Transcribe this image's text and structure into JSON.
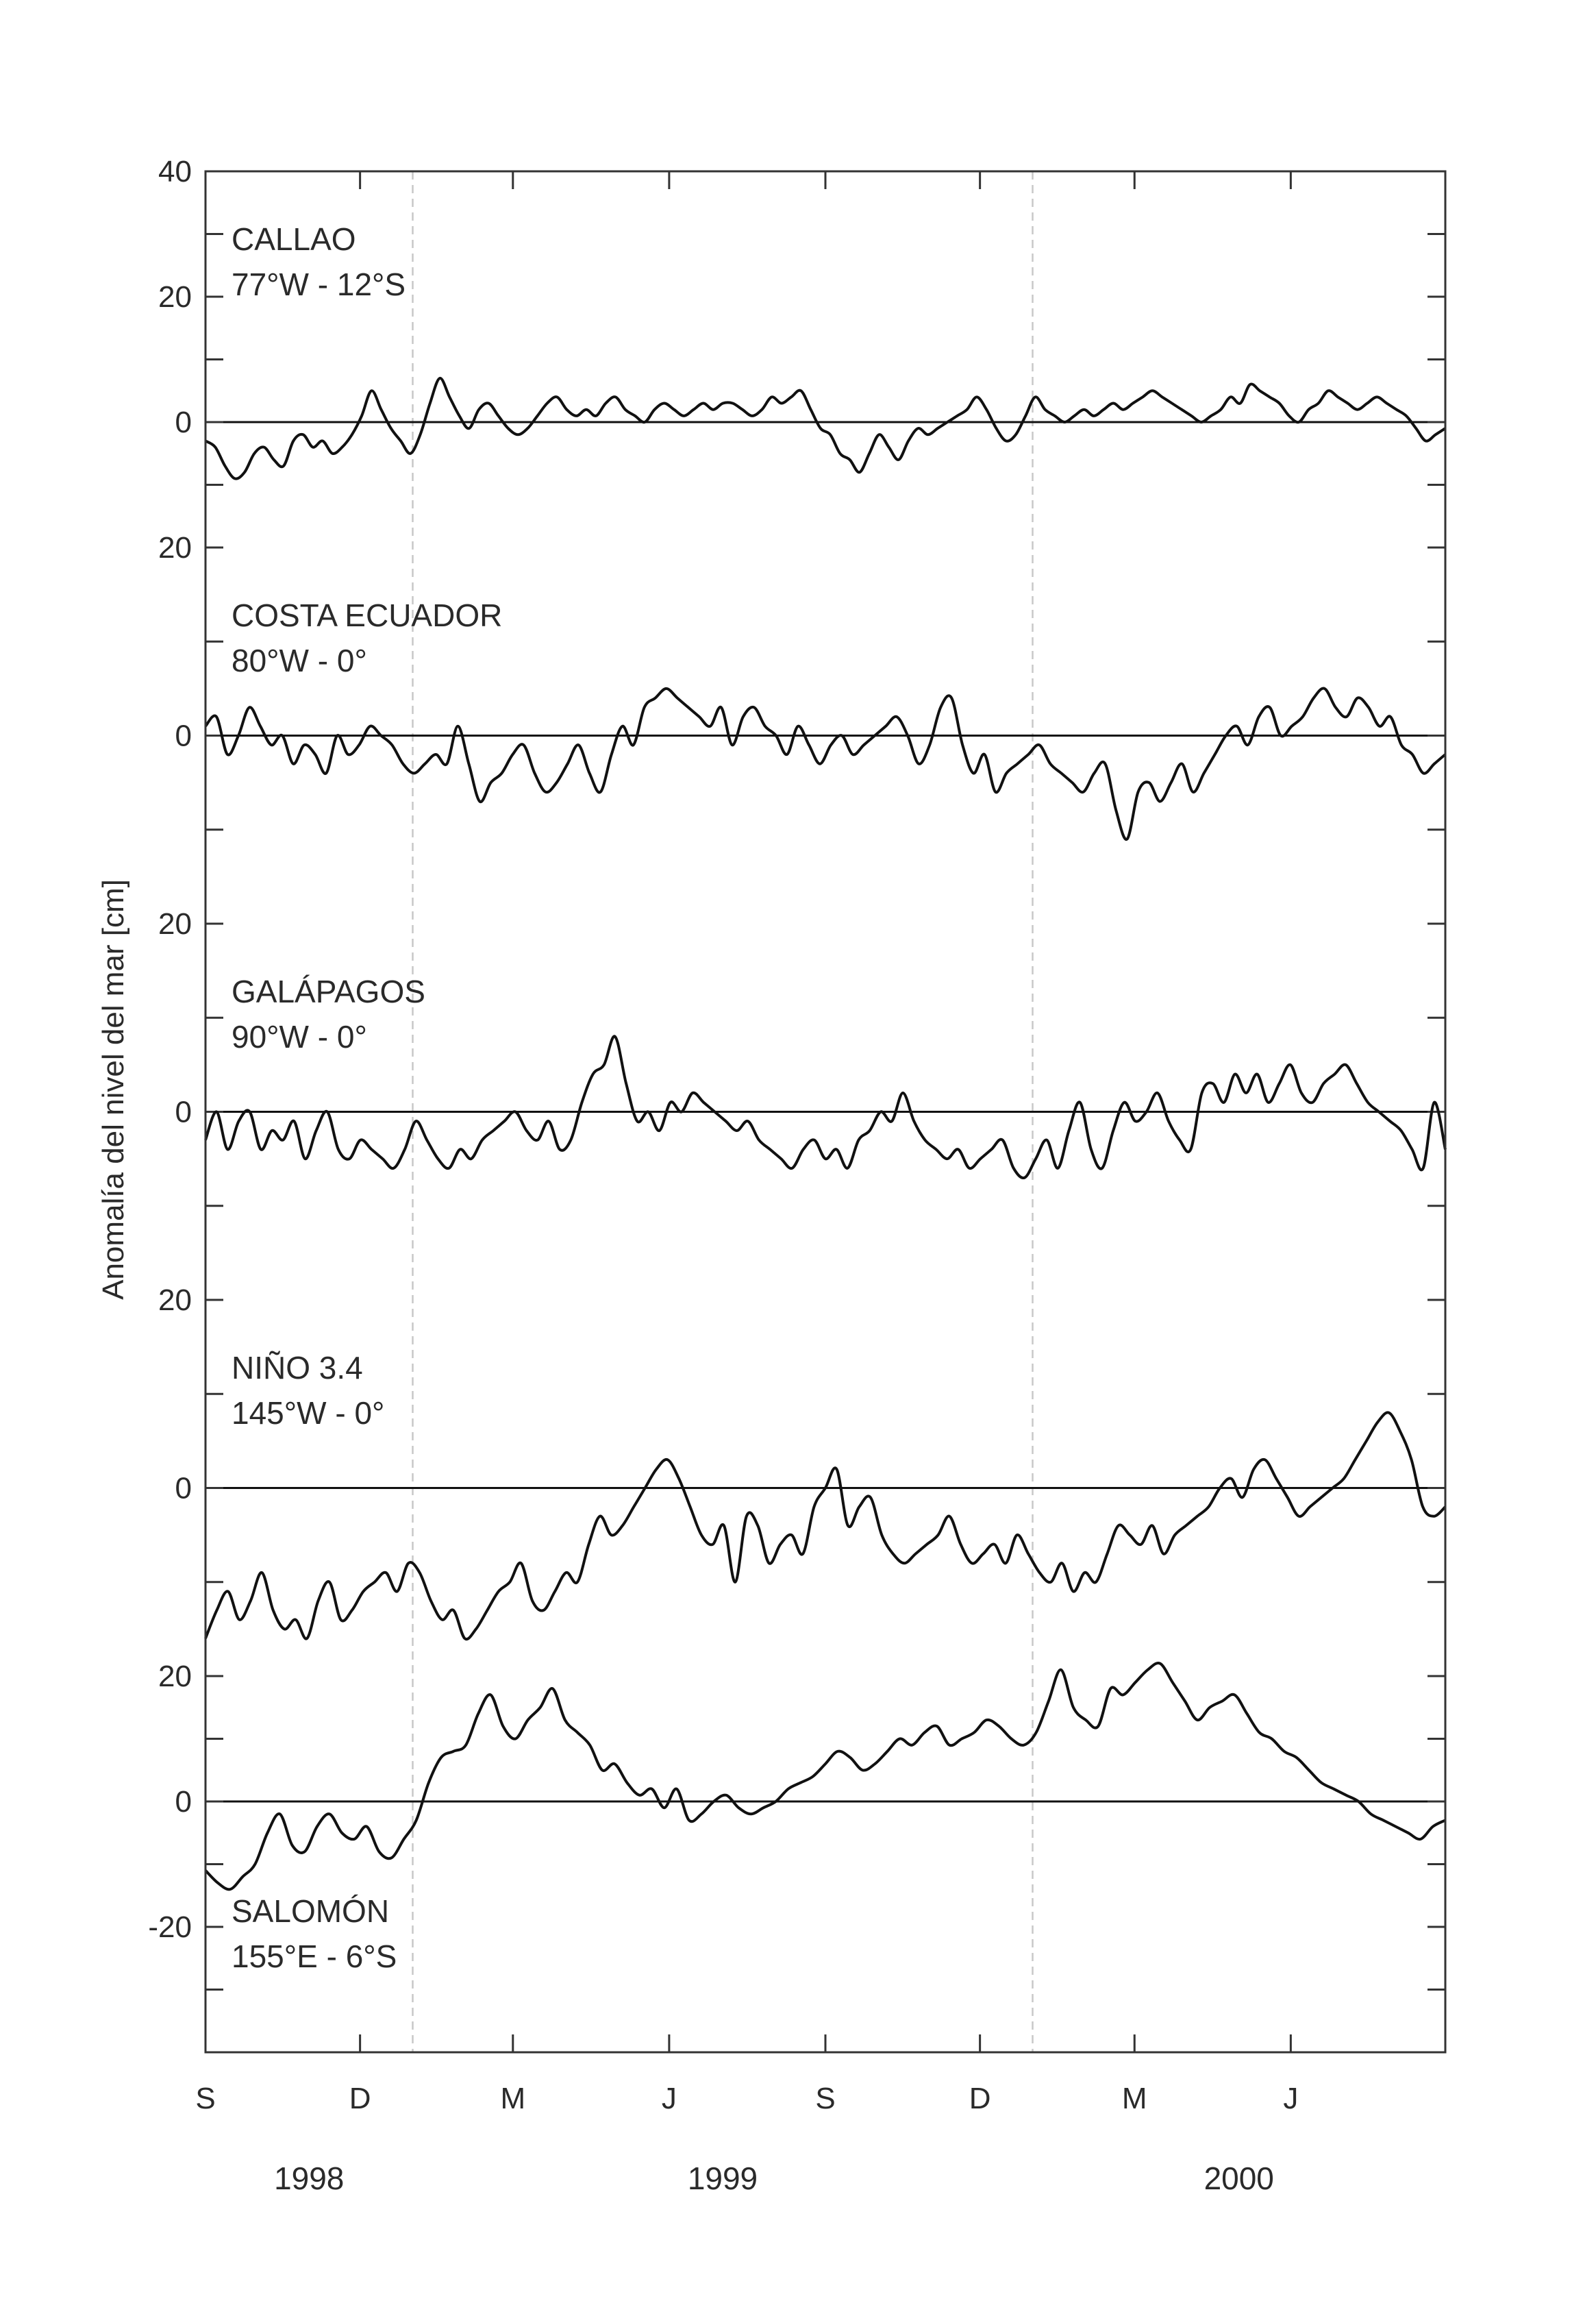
{
  "chart_data": {
    "type": "line",
    "ylabel": "Anomalía del nivel del mar [cm]",
    "grid": false,
    "x_range": [
      "1998-09-01",
      "2000-08-31"
    ],
    "month_ticks": [
      "S",
      "D",
      "M",
      "J",
      "S",
      "D",
      "M",
      "J"
    ],
    "year_labels": [
      "1998",
      "1999",
      "2000"
    ],
    "vertical_markers": [
      "1999-01-01",
      "2000-01-01"
    ],
    "panels": [
      {
        "name": "CALLAO",
        "location": "77°W - 12°S",
        "ylim": [
          -20,
          40
        ],
        "yticks": [
          "40",
          "20",
          "0",
          "-20"
        ],
        "values": [
          -3,
          -4,
          -7,
          -9,
          -8,
          -5,
          -4,
          -6,
          -7,
          -3,
          -2,
          -4,
          -3,
          -5,
          -4,
          -2,
          1,
          5,
          2,
          -1,
          -3,
          -5,
          -2,
          3,
          7,
          4,
          1,
          -1,
          2,
          3,
          1,
          -1,
          -2,
          -1,
          1,
          3,
          4,
          2,
          1,
          2,
          1,
          3,
          4,
          2,
          1,
          0,
          2,
          3,
          2,
          1,
          2,
          3,
          2,
          3,
          3,
          2,
          1,
          2,
          4,
          3,
          4,
          5,
          2,
          -1,
          -2,
          -5,
          -6,
          -8,
          -5,
          -2,
          -4,
          -6,
          -3,
          -1,
          -2,
          -1,
          0,
          1,
          2,
          4,
          2,
          -1,
          -3,
          -2,
          1,
          4,
          2,
          1,
          0,
          1,
          2,
          1,
          2,
          3,
          2,
          3,
          4,
          5,
          4,
          3,
          2,
          1,
          0,
          1,
          2,
          4,
          3,
          6,
          5,
          4,
          3,
          1,
          0,
          2,
          3,
          5,
          4,
          3,
          2,
          3,
          4,
          3,
          2,
          1,
          -1,
          -3,
          -2,
          -1
        ],
        "x_start": "1998-09-01",
        "x_end": "2000-08-31"
      },
      {
        "name": "COSTA ECUADOR",
        "location": "80°W - 0°",
        "ylim": [
          -20,
          20
        ],
        "yticks": [
          "20",
          "0",
          "-20"
        ],
        "values": [
          1,
          2,
          -2,
          0,
          3,
          1,
          -1,
          0,
          -3,
          -1,
          -2,
          -4,
          0,
          -2,
          -1,
          1,
          0,
          -1,
          -3,
          -4,
          -3,
          -2,
          -3,
          1,
          -3,
          -7,
          -5,
          -4,
          -2,
          -1,
          -4,
          -6,
          -5,
          -3,
          -1,
          -4,
          -6,
          -2,
          1,
          -1,
          3,
          4,
          5,
          4,
          3,
          2,
          1,
          3,
          -1,
          2,
          3,
          1,
          0,
          -2,
          1,
          -1,
          -3,
          -1,
          0,
          -2,
          -1,
          0,
          1,
          2,
          0,
          -3,
          -1,
          3,
          4,
          -1,
          -4,
          -2,
          -6,
          -4,
          -3,
          -2,
          -1,
          -3,
          -4,
          -5,
          -6,
          -4,
          -3,
          -8,
          -11,
          -6,
          -5,
          -7,
          -5,
          -3,
          -6,
          -4,
          -2,
          0,
          1,
          -1,
          2,
          3,
          0,
          1,
          2,
          4,
          5,
          3,
          2,
          4,
          3,
          1,
          2,
          -1,
          -2,
          -4,
          -3,
          -2
        ],
        "x_start": "1998-09-01",
        "x_end": "2000-08-31"
      },
      {
        "name": "GALÁPAGOS",
        "location": "90°W - 0°",
        "ylim": [
          -20,
          20
        ],
        "yticks": [
          "20",
          "0",
          "-20"
        ],
        "values": [
          -3,
          0,
          -4,
          -1,
          0,
          -4,
          -2,
          -3,
          -1,
          -5,
          -2,
          0,
          -4,
          -5,
          -3,
          -4,
          -5,
          -6,
          -4,
          -1,
          -3,
          -5,
          -6,
          -4,
          -5,
          -3,
          -2,
          -1,
          0,
          -2,
          -3,
          -1,
          -4,
          -3,
          1,
          4,
          5,
          8,
          3,
          -1,
          0,
          -2,
          1,
          0,
          2,
          1,
          0,
          -1,
          -2,
          -1,
          -3,
          -4,
          -5,
          -6,
          -4,
          -3,
          -5,
          -4,
          -6,
          -3,
          -2,
          0,
          -1,
          2,
          -1,
          -3,
          -4,
          -5,
          -4,
          -6,
          -5,
          -4,
          -3,
          -6,
          -7,
          -5,
          -3,
          -6,
          -2,
          1,
          -4,
          -6,
          -2,
          1,
          -1,
          0,
          2,
          -1,
          -3,
          -4,
          2,
          3,
          1,
          4,
          2,
          4,
          1,
          3,
          5,
          2,
          1,
          3,
          4,
          5,
          3,
          1,
          0,
          -1,
          -2,
          -4,
          -6,
          1,
          -4
        ],
        "x_start": "1998-09-01",
        "x_end": "2000-08-31"
      },
      {
        "name": "NIÑO 3.4",
        "location": "145°W - 0°",
        "ylim": [
          -20,
          20
        ],
        "yticks": [
          "20",
          "0",
          "-20"
        ],
        "values": [
          -16,
          -13,
          -11,
          -14,
          -12,
          -9,
          -13,
          -15,
          -14,
          -16,
          -12,
          -10,
          -14,
          -13,
          -11,
          -10,
          -9,
          -11,
          -8,
          -9,
          -12,
          -14,
          -13,
          -16,
          -15,
          -13,
          -11,
          -10,
          -8,
          -12,
          -13,
          -11,
          -9,
          -10,
          -6,
          -3,
          -5,
          -4,
          -2,
          0,
          2,
          3,
          1,
          -2,
          -5,
          -6,
          -4,
          -10,
          -3,
          -4,
          -8,
          -6,
          -5,
          -7,
          -2,
          0,
          2,
          -4,
          -2,
          -1,
          -5,
          -7,
          -8,
          -7,
          -6,
          -5,
          -3,
          -6,
          -8,
          -7,
          -6,
          -8,
          -5,
          -7,
          -9,
          -10,
          -8,
          -11,
          -9,
          -10,
          -7,
          -4,
          -5,
          -6,
          -4,
          -7,
          -5,
          -4,
          -3,
          -2,
          0,
          1,
          -1,
          2,
          3,
          1,
          -1,
          -3,
          -2,
          -1,
          0,
          1,
          3,
          5,
          7,
          8,
          6,
          3,
          -2,
          -3,
          -2
        ],
        "x_start": "1998-09-01",
        "x_end": "2000-08-31"
      },
      {
        "name": "SALOMÓN",
        "location": "155°E - 6°S",
        "ylim": [
          -40,
          20
        ],
        "yticks": [
          "20",
          "0",
          "-20",
          "-40"
        ],
        "values": [
          -11,
          -13,
          -14,
          -12,
          -10,
          -5,
          -2,
          -7,
          -8,
          -4,
          -2,
          -5,
          -6,
          -4,
          -8,
          -9,
          -6,
          -3,
          3,
          7,
          8,
          9,
          14,
          17,
          12,
          10,
          13,
          15,
          18,
          13,
          11,
          9,
          5,
          6,
          3,
          1,
          2,
          -1,
          2,
          -3,
          -2,
          0,
          1,
          -1,
          -2,
          -1,
          0,
          2,
          3,
          4,
          6,
          8,
          7,
          5,
          6,
          8,
          10,
          9,
          11,
          12,
          9,
          10,
          11,
          13,
          12,
          10,
          9,
          11,
          16,
          21,
          15,
          13,
          12,
          18,
          17,
          19,
          21,
          22,
          19,
          16,
          13,
          15,
          16,
          17,
          14,
          11,
          10,
          8,
          7,
          5,
          3,
          2,
          1,
          0,
          -2,
          -3,
          -4,
          -5,
          -6,
          -4,
          -3
        ],
        "x_start": "1998-09-01",
        "x_end": "2000-08-31"
      }
    ]
  }
}
